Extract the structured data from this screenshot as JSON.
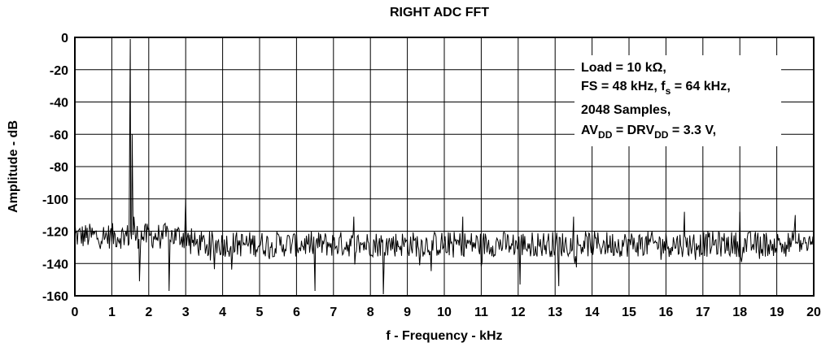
{
  "chart_data": {
    "type": "line",
    "title": "RIGHT ADC FFT",
    "xlabel": "f - Frequency - kHz",
    "ylabel": "Amplitude - dB",
    "xlim": [
      0,
      20
    ],
    "ylim": [
      -160,
      0
    ],
    "x_ticks": [
      0,
      1,
      2,
      3,
      4,
      5,
      6,
      7,
      8,
      9,
      10,
      11,
      12,
      13,
      14,
      15,
      16,
      17,
      18,
      19,
      20
    ],
    "x_tick_labels": [
      "0",
      "1",
      "2",
      "3",
      "4",
      "5",
      "6",
      "7",
      "8",
      "9",
      "10",
      "11",
      "12",
      "13",
      "14",
      "15",
      "16",
      "17",
      "18",
      "19",
      "20"
    ],
    "y_ticks": [
      0,
      -20,
      -40,
      -60,
      -80,
      -100,
      -120,
      -140,
      -160
    ],
    "y_tick_labels": [
      "0",
      "-20",
      "-40",
      "-60",
      "-80",
      "-100",
      "-120",
      "-140",
      "-160"
    ],
    "grid": true,
    "line_color": "#000000",
    "noise_floor_db": -128,
    "peaks": [
      {
        "x": 0.0,
        "y": -113
      },
      {
        "x": 1.5,
        "y": -1
      },
      {
        "x": 1.55,
        "y": -60
      },
      {
        "x": 1.6,
        "y": -111
      },
      {
        "x": 1.75,
        "y": -151
      },
      {
        "x": 2.55,
        "y": -157
      },
      {
        "x": 3.0,
        "y": -100
      },
      {
        "x": 6.5,
        "y": -157
      },
      {
        "x": 7.55,
        "y": -111
      },
      {
        "x": 8.35,
        "y": -159
      },
      {
        "x": 10.5,
        "y": -111
      },
      {
        "x": 12.05,
        "y": -153
      },
      {
        "x": 13.1,
        "y": -154
      },
      {
        "x": 13.5,
        "y": -111
      },
      {
        "x": 16.5,
        "y": -108
      },
      {
        "x": 18.0,
        "y": -108
      },
      {
        "x": 19.5,
        "y": -110
      }
    ],
    "annotation": {
      "line1": "Load = 10 kΩ,",
      "line2_pre": "FS = 48 kHz, f",
      "line2_sub": "s",
      "line2_post": " = 64 kHz,",
      "line3": "2048 Samples,",
      "line4_a": "AV",
      "line4_sub1": "DD",
      "line4_b": " = DRV",
      "line4_sub2": "DD",
      "line4_c": " = 3.3 V,"
    }
  }
}
